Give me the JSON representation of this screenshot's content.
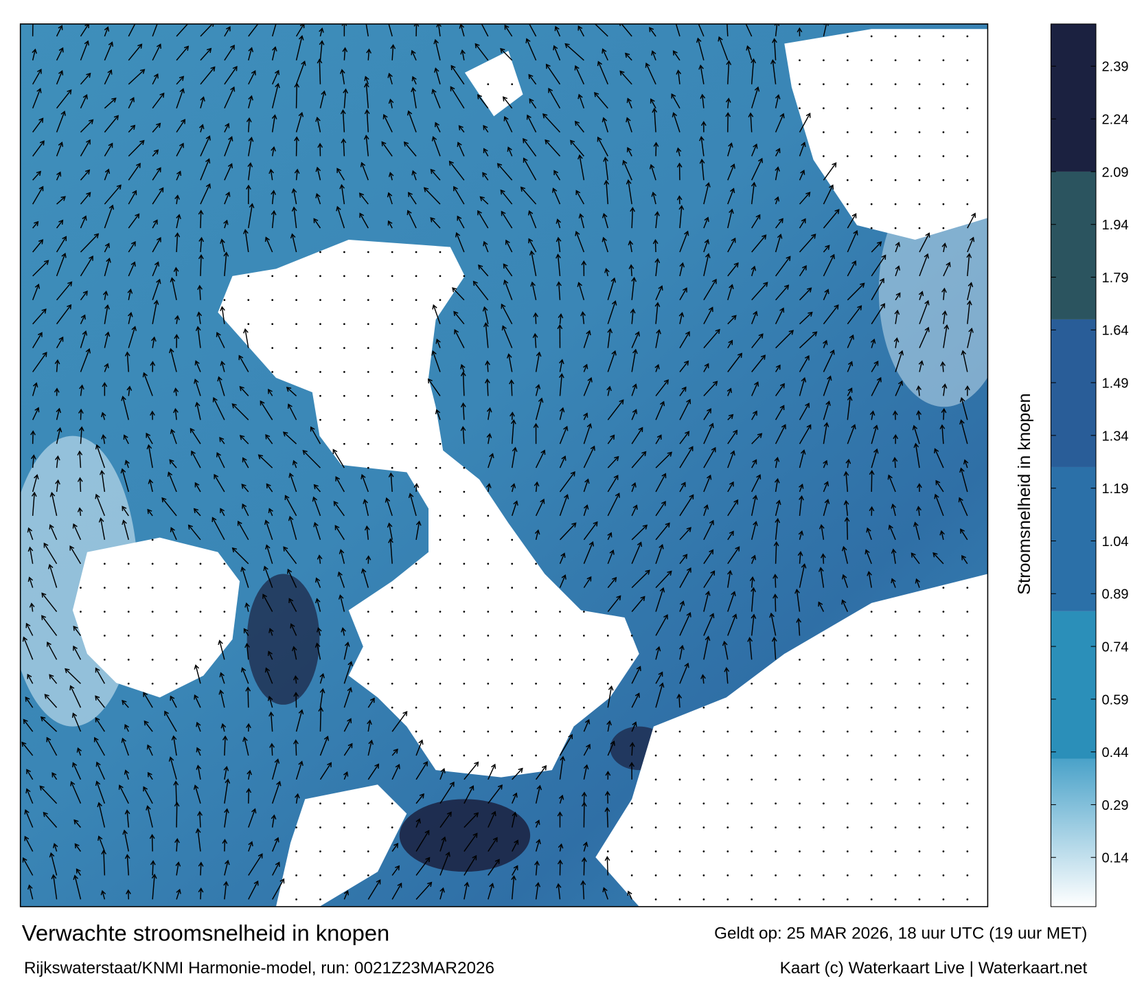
{
  "header": {
    "title": "Verwachte stroomsnelheid in knopen",
    "valid_time": "Geldt op: 25 MAR 2026, 18 uur UTC (19 uur MET)",
    "model_run": "Rijkswaterstaat/KNMI Harmonie-model, run: 0021Z23MAR2026",
    "credit": "Kaart (c) Waterkaart Live | Waterkaart.net"
  },
  "colorbar": {
    "label": "Stroomsnelheid in knopen",
    "ylim": [
      0,
      2.51
    ],
    "yticks": [
      0.14,
      0.29,
      0.44,
      0.59,
      0.74,
      0.89,
      1.04,
      1.19,
      1.34,
      1.49,
      1.64,
      1.79,
      1.94,
      2.09,
      2.24,
      2.39
    ],
    "bands": [
      {
        "from": 0,
        "to": 0.42,
        "color": "#4aa2c9"
      },
      {
        "from": 0.42,
        "to": 0.84,
        "color": "#2b8fb9"
      },
      {
        "from": 0.84,
        "to": 1.25,
        "color": "#2b70a8"
      },
      {
        "from": 1.25,
        "to": 1.67,
        "color": "#295d98"
      },
      {
        "from": 1.67,
        "to": 2.09,
        "color": "#2b545f"
      },
      {
        "from": 2.09,
        "to": 2.51,
        "color": "#1b2140"
      }
    ]
  }
}
